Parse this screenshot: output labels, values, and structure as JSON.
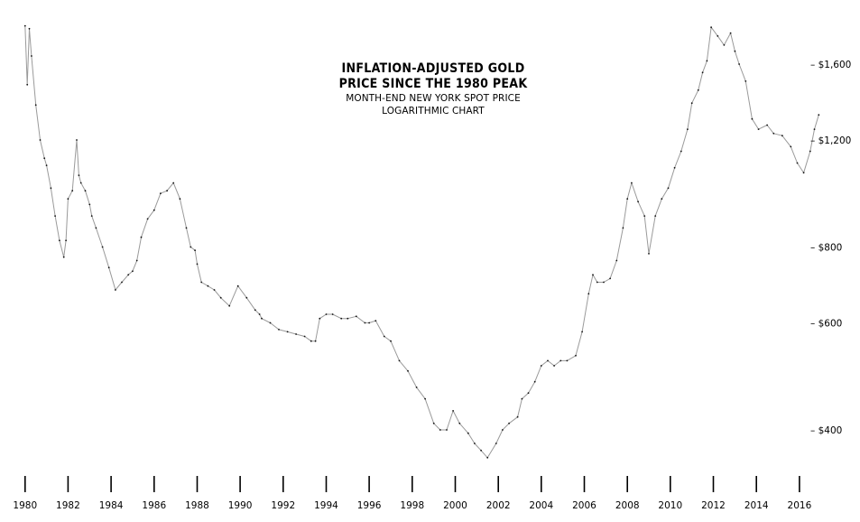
{
  "chart_data": {
    "type": "line",
    "title": "INFLATION-ADJUSTED GOLD",
    "title_line2": "PRICE SINCE THE 1980 PEAK",
    "subtitle": "MONTH-END NEW YORK SPOT PRICE",
    "subtitle_line2": "LOGARITHMIC CHART",
    "xlabel": "",
    "ylabel": "",
    "y_scale": "log",
    "xlim": [
      1979.8,
      2017.6
    ],
    "ylim": [
      330,
      1900
    ],
    "grid": false,
    "legend": "none",
    "line_color": "#9a9a9a",
    "highlight_color": "#111111",
    "x_tick_labels": [
      "1980",
      "1982",
      "1984",
      "1986",
      "1988",
      "1990",
      "1992",
      "1994",
      "1996",
      "1998",
      "2000",
      "2002",
      "2004",
      "2006",
      "2008",
      "2010",
      "2012",
      "2014",
      "2016"
    ],
    "y_tick_labels": [
      "– $1,600",
      "– $1,200",
      "– $800",
      "– $600",
      "– $400"
    ],
    "y_tick_values": [
      1600,
      1200,
      800,
      600,
      400
    ],
    "series": [
      {
        "x": [
          1980.0,
          1980.1,
          1980.2,
          1980.3,
          1980.5,
          1980.7,
          1980.9,
          1981.0,
          1981.2,
          1981.4,
          1981.6,
          1981.8,
          1981.9,
          1982.0,
          1982.2,
          1982.4,
          1982.5,
          1982.6,
          1982.8,
          1983.0,
          1983.1,
          1983.3,
          1983.6,
          1983.9,
          1984.2,
          1984.5,
          1984.8,
          1985.0,
          1985.2,
          1985.4,
          1985.7,
          1986.0,
          1986.3,
          1986.6,
          1986.9,
          1987.2,
          1987.5,
          1987.7,
          1987.9,
          1988.0,
          1988.2,
          1988.5,
          1988.8,
          1989.1,
          1989.5,
          1989.9,
          1990.3,
          1990.7,
          1990.9,
          1991.0,
          1991.4,
          1991.8,
          1992.2,
          1992.6,
          1993.0,
          1993.3,
          1993.5,
          1993.7,
          1994.0,
          1994.3,
          1994.7,
          1995.0,
          1995.4,
          1995.8,
          1996.0,
          1996.3,
          1996.7,
          1997.0,
          1997.4,
          1997.8,
          1998.2,
          1998.6,
          1999.0,
          1999.3,
          1999.6,
          1999.9,
          2000.2,
          2000.6,
          2000.9,
          2001.2,
          2001.5,
          2001.9,
          2002.2,
          2002.5,
          2002.9,
          2003.1,
          2003.4,
          2003.7,
          2004.0,
          2004.3,
          2004.6,
          2004.9,
          2005.2,
          2005.6,
          2005.9,
          2006.2,
          2006.4,
          2006.6,
          2006.9,
          2007.2,
          2007.5,
          2007.8,
          2008.0,
          2008.2,
          2008.5,
          2008.8,
          2009.0,
          2009.3,
          2009.6,
          2009.9,
          2010.2,
          2010.5,
          2010.8,
          2011.0,
          2011.3,
          2011.5,
          2011.7,
          2011.9,
          2012.2,
          2012.5,
          2012.8,
          2013.0,
          2013.2,
          2013.5,
          2013.8,
          2014.1,
          2014.5,
          2014.8,
          2015.2,
          2015.6,
          2015.9,
          2016.2,
          2016.5,
          2016.7,
          2016.9
        ],
        "values": [
          1850,
          1480,
          1830,
          1650,
          1370,
          1200,
          1120,
          1090,
          1000,
          900,
          820,
          770,
          820,
          960,
          990,
          1200,
          1050,
          1020,
          990,
          940,
          900,
          860,
          800,
          740,
          680,
          700,
          720,
          730,
          760,
          830,
          890,
          920,
          980,
          990,
          1020,
          960,
          860,
          800,
          790,
          750,
          700,
          690,
          680,
          660,
          640,
          690,
          660,
          630,
          620,
          610,
          600,
          585,
          580,
          575,
          570,
          560,
          560,
          610,
          620,
          620,
          610,
          610,
          615,
          600,
          600,
          605,
          570,
          560,
          520,
          500,
          470,
          450,
          410,
          400,
          400,
          430,
          410,
          395,
          380,
          370,
          360,
          380,
          400,
          410,
          420,
          450,
          460,
          480,
          510,
          520,
          510,
          520,
          520,
          530,
          580,
          670,
          720,
          700,
          700,
          710,
          760,
          860,
          960,
          1020,
          950,
          900,
          780,
          900,
          960,
          1000,
          1080,
          1150,
          1250,
          1380,
          1450,
          1550,
          1620,
          1840,
          1780,
          1720,
          1800,
          1680,
          1600,
          1500,
          1300,
          1250,
          1270,
          1230,
          1220,
          1170,
          1100,
          1060,
          1150,
          1250,
          1320
        ]
      }
    ]
  }
}
